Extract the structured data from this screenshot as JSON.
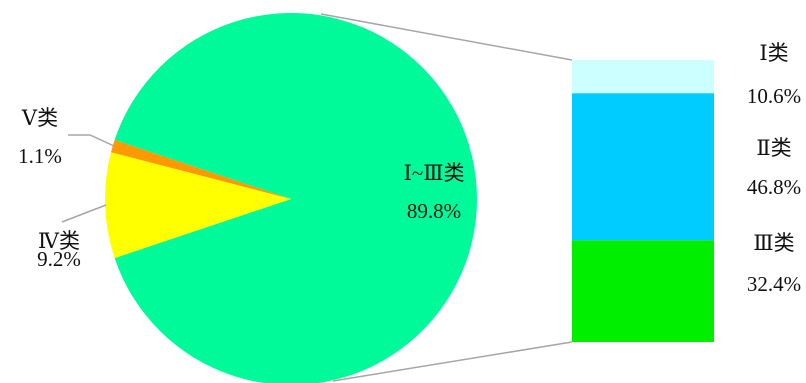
{
  "chart_data": {
    "type": "pie",
    "title": "",
    "pie": {
      "slices": [
        {
          "label": "Ⅰ~Ⅲ类",
          "value": 89.8,
          "value_label": "89.8%",
          "color": "#00FA9A"
        },
        {
          "label": "Ⅳ类",
          "value": 9.2,
          "value_label": "9.2%",
          "color": "#FFFF00"
        },
        {
          "label": "Ⅴ类",
          "value": 1.1,
          "value_label": "1.1%",
          "color": "#FF9900"
        }
      ]
    },
    "breakdown": {
      "of": "Ⅰ~Ⅲ类",
      "type": "stacked-bar",
      "segments": [
        {
          "label": "Ⅰ类",
          "value": 10.6,
          "value_label": "10.6%",
          "color": "#CCFFFF"
        },
        {
          "label": "Ⅱ类",
          "value": 46.8,
          "value_label": "46.8%",
          "color": "#00CCFF"
        },
        {
          "label": "Ⅲ类",
          "value": 32.4,
          "value_label": "32.4%",
          "color": "#00EE00"
        }
      ]
    },
    "connector_color": "#A6A6A6",
    "leader_color": "#A6A6A6"
  }
}
